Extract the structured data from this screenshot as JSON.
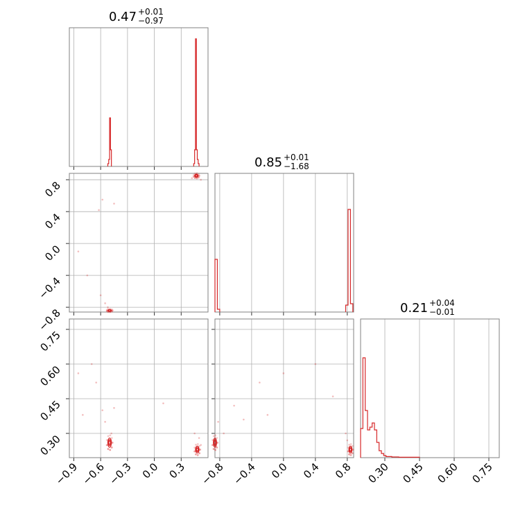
{
  "chart_data": {
    "type": "corner",
    "colors": {
      "line": "#d62728",
      "grid": "#b0b0b0",
      "frame": "#808080"
    },
    "parameters": [
      {
        "title": {
          "value": "0.47",
          "plus": "+0.01",
          "minus": "−0.97"
        },
        "range": [
          -0.95,
          0.6
        ],
        "ticks": [
          -0.9,
          -0.6,
          -0.3,
          0.0,
          0.3
        ],
        "tick_labels": [
          "−0.9",
          "−0.6",
          "−0.3",
          "0.0",
          "0.3"
        ]
      },
      {
        "title": {
          "value": "0.85",
          "plus": "+0.01",
          "minus": "−1.68"
        },
        "range": [
          -0.86,
          0.88
        ],
        "ticks": [
          -0.8,
          -0.4,
          0.0,
          0.4,
          0.8
        ],
        "tick_labels": [
          "−0.8",
          "−0.4",
          "0.0",
          "0.4",
          "0.8"
        ]
      },
      {
        "title": {
          "value": "0.21",
          "plus": "+0.04",
          "minus": "−0.01"
        },
        "range": [
          0.195,
          0.795
        ],
        "ticks": [
          0.3,
          0.45,
          0.6,
          0.75
        ],
        "tick_labels": [
          "0.30",
          "0.45",
          "0.60",
          "0.75"
        ]
      }
    ],
    "histograms": [
      {
        "bins": [
          [
            -0.52,
            -0.51,
            0.02
          ],
          [
            -0.51,
            -0.5,
            0.05
          ],
          [
            -0.5,
            -0.49,
            0.35
          ],
          [
            -0.49,
            -0.48,
            0.12
          ],
          [
            0.44,
            0.45,
            0.02
          ],
          [
            0.45,
            0.46,
            0.12
          ],
          [
            0.46,
            0.47,
            0.92
          ],
          [
            0.47,
            0.48,
            0.12
          ],
          [
            0.48,
            0.49,
            0.05
          ],
          [
            0.49,
            0.5,
            0.02
          ]
        ]
      },
      {
        "bins": [
          [
            -0.86,
            -0.83,
            0.38
          ],
          [
            -0.83,
            -0.8,
            0.02
          ],
          [
            0.78,
            0.81,
            0.05
          ],
          [
            0.81,
            0.84,
            0.74
          ],
          [
            0.84,
            0.87,
            0.06
          ]
        ]
      },
      {
        "bins": [
          [
            0.195,
            0.205,
            0.21
          ],
          [
            0.205,
            0.215,
            0.72
          ],
          [
            0.215,
            0.225,
            0.34
          ],
          [
            0.225,
            0.235,
            0.2
          ],
          [
            0.235,
            0.245,
            0.22
          ],
          [
            0.245,
            0.255,
            0.25
          ],
          [
            0.255,
            0.265,
            0.2
          ],
          [
            0.265,
            0.275,
            0.11
          ],
          [
            0.275,
            0.285,
            0.05
          ],
          [
            0.285,
            0.295,
            0.03
          ],
          [
            0.295,
            0.305,
            0.015
          ],
          [
            0.305,
            0.33,
            0.008
          ],
          [
            0.33,
            0.36,
            0.005
          ],
          [
            0.36,
            0.45,
            0.003
          ]
        ]
      }
    ],
    "panels": [
      {
        "x": 0,
        "y": 1,
        "modes": [
          {
            "cx": 0.47,
            "cy": 0.85,
            "rx": 0.02,
            "ry": 0.02
          },
          {
            "cx": -0.5,
            "cy": -0.84,
            "rx": 0.02,
            "ry": 0.012
          }
        ],
        "samples": [
          [
            -0.85,
            -0.1
          ],
          [
            -0.75,
            -0.4
          ],
          [
            -0.62,
            0.42
          ],
          [
            -0.58,
            0.55
          ],
          [
            -0.45,
            0.5
          ],
          [
            -0.6,
            -0.65
          ],
          [
            -0.55,
            -0.75
          ],
          [
            -0.52,
            -0.8
          ],
          [
            0.42,
            0.82
          ],
          [
            0.52,
            0.8
          ]
        ]
      },
      {
        "x": 0,
        "y": 2,
        "modes": [
          {
            "cx": -0.5,
            "cy": 0.26,
            "rx": 0.02,
            "ry": 0.02
          },
          {
            "cx": 0.48,
            "cy": 0.23,
            "rx": 0.02,
            "ry": 0.015
          }
        ],
        "samples": [
          [
            -0.85,
            0.56
          ],
          [
            -0.8,
            0.38
          ],
          [
            -0.7,
            0.6
          ],
          [
            -0.65,
            0.52
          ],
          [
            -0.58,
            0.4
          ],
          [
            -0.55,
            0.35
          ],
          [
            -0.48,
            0.3
          ],
          [
            -0.45,
            0.41
          ],
          [
            0.1,
            0.43
          ],
          [
            0.45,
            0.3
          ],
          [
            0.5,
            0.28
          ],
          [
            0.52,
            0.25
          ]
        ]
      },
      {
        "x": 1,
        "y": 2,
        "modes": [
          {
            "cx": -0.86,
            "cy": 0.26,
            "rx": 0.02,
            "ry": 0.02
          },
          {
            "cx": 0.84,
            "cy": 0.23,
            "rx": 0.02,
            "ry": 0.015
          }
        ],
        "samples": [
          [
            -0.82,
            0.35
          ],
          [
            -0.75,
            0.3
          ],
          [
            -0.62,
            0.42
          ],
          [
            -0.5,
            0.36
          ],
          [
            -0.3,
            0.52
          ],
          [
            -0.2,
            0.38
          ],
          [
            0.0,
            0.56
          ],
          [
            0.4,
            0.6
          ],
          [
            0.62,
            0.46
          ],
          [
            0.78,
            0.3
          ],
          [
            0.8,
            0.27
          ]
        ]
      }
    ]
  }
}
